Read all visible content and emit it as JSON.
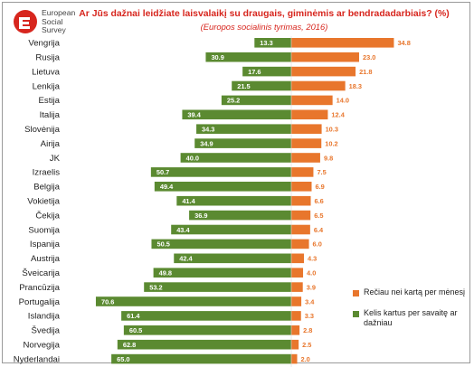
{
  "logo": {
    "line1": "European",
    "line2": "Social",
    "line3": "Survey"
  },
  "colors": {
    "green": "#5b8a31",
    "orange": "#e8762c",
    "title": "#d7261e"
  },
  "chart_data": {
    "type": "bar",
    "orientation": "horizontal-diverging",
    "title": "Ar Jūs dažnai leidžiate laisvalaikį su draugais, giminėmis ar bendradadarbiais? (%)",
    "subtitle": "(Europos socialinis tyrimas, 2016)",
    "categories": [
      "Vengrija",
      "Rusija",
      "Lietuva",
      "Lenkija",
      "Estija",
      "Italija",
      "Slovėnija",
      "Airija",
      "JK",
      "Izraelis",
      "Belgija",
      "Vokietija",
      "Čekija",
      "Suomija",
      "Ispanija",
      "Austrija",
      "Šveicarija",
      "Prancūzija",
      "Portugalija",
      "Islandija",
      "Švedija",
      "Norvegija",
      "Nyderlandai"
    ],
    "series": [
      {
        "name": "Rečiau nei kartą per mėnesį",
        "direction": "right",
        "color": "#e8762c",
        "values": [
          "34.8",
          "23.0",
          "21.8",
          "18.3",
          "14.0",
          "12.4",
          "10.3",
          "10.2",
          "9.8",
          "7.5",
          "6.9",
          "6.6",
          "6.5",
          "6.4",
          "6.0",
          "4.3",
          "4.0",
          "3.9",
          "3.4",
          "3.3",
          "2.8",
          "2.5",
          "2.0"
        ]
      },
      {
        "name": "Kelis kartus per savaitę ar dažniau",
        "direction": "left",
        "color": "#5b8a31",
        "values": [
          "13.3",
          "30.9",
          "17.6",
          "21.5",
          "25.2",
          "39.4",
          "34.3",
          "34.9",
          "40.0",
          "50.7",
          "49.4",
          "41.4",
          "36.9",
          "43.4",
          "50.5",
          "42.4",
          "49.8",
          "53.2",
          "70.6",
          "61.4",
          "60.5",
          "62.8",
          "65.0"
        ]
      }
    ],
    "legend_position": "bottom-right",
    "grid": false
  }
}
